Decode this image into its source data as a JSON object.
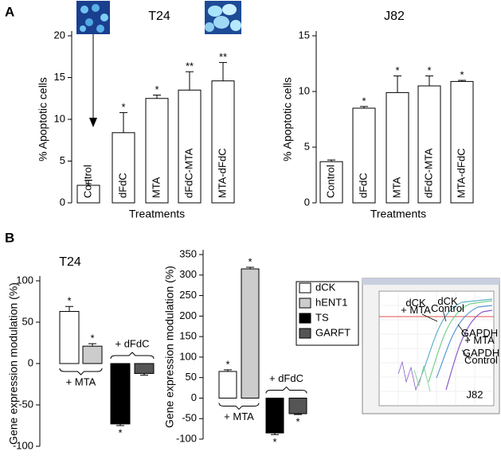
{
  "panel_labels": [
    "A",
    "B"
  ],
  "chart_data": [
    {
      "type": "bar",
      "title": "T24",
      "ylabel": "% Apoptotic cells",
      "xlabel": "Treatments",
      "categories": [
        "Control",
        "dFdC",
        "MTA",
        "dFdC-MTA",
        "MTA-dFdC"
      ],
      "values": [
        2.1,
        8.4,
        12.5,
        13.5,
        14.6
      ],
      "errors": [
        0.6,
        2.4,
        0.4,
        2.2,
        2.2
      ],
      "annotations": [
        null,
        "*",
        "*",
        "**",
        "**"
      ],
      "color": "#ffffff",
      "ylim": [
        0,
        20
      ],
      "yticks": [
        0,
        5,
        10,
        15,
        20
      ]
    },
    {
      "type": "bar",
      "title": "J82",
      "ylabel": "% Apoptotic cells",
      "xlabel": "Treatments",
      "categories": [
        "Control",
        "dFdC",
        "MTA",
        "dFdC-MTA",
        "MTA-dFdC"
      ],
      "values": [
        3.7,
        8.5,
        9.9,
        10.5,
        10.9
      ],
      "errors": [
        0.15,
        0.15,
        1.5,
        0.9,
        0.1
      ],
      "annotations": [
        null,
        "*",
        "*",
        "*",
        "*"
      ],
      "color": "#ffffff",
      "ylim": [
        0,
        15
      ],
      "yticks": [
        0,
        5,
        10,
        15
      ]
    },
    {
      "type": "grouped_bar",
      "title": "T24",
      "ylabel": "Gene expression modulation (%)",
      "groups": [
        "+ MTA",
        "+ dFdC"
      ],
      "series": [
        {
          "color": "#ffffff",
          "values": [
            63,
            null
          ],
          "errors": [
            6,
            null
          ],
          "annotations": [
            "*",
            null
          ]
        },
        {
          "color": "#cccccc",
          "values": [
            21,
            null
          ],
          "errors": [
            3,
            null
          ],
          "annotations": [
            "*",
            null
          ]
        },
        {
          "color": "#000000",
          "values": [
            null,
            -73
          ],
          "errors": [
            null,
            2
          ],
          "annotations": [
            null,
            "*"
          ]
        },
        {
          "color": "#555555",
          "values": [
            null,
            -12
          ],
          "errors": [
            null,
            2
          ],
          "annotations": [
            null,
            null
          ]
        }
      ],
      "ylim": [
        -100,
        100
      ],
      "yticks": [
        -100,
        -50,
        0,
        50,
        100
      ]
    },
    {
      "type": "grouped_bar",
      "ylabel": "Gene expression modulation (%)",
      "groups": [
        "+ MTA",
        "+ dFdC"
      ],
      "series": [
        {
          "name": "dCK",
          "color": "#ffffff",
          "values": [
            65,
            null
          ],
          "errors": [
            4,
            null
          ],
          "annotations": [
            "*",
            null
          ]
        },
        {
          "name": "hENT1",
          "color": "#cccccc",
          "values": [
            315,
            null
          ],
          "errors": [
            4,
            null
          ],
          "annotations": [
            "*",
            null
          ]
        },
        {
          "name": "TS",
          "color": "#000000",
          "values": [
            null,
            -85
          ],
          "errors": [
            null,
            4
          ],
          "annotations": [
            null,
            "*"
          ]
        },
        {
          "name": "GARFT",
          "color": "#555555",
          "values": [
            null,
            -38
          ],
          "errors": [
            null,
            2
          ],
          "annotations": [
            null,
            "*"
          ]
        }
      ],
      "ylim": [
        -100,
        350
      ],
      "yticks": [
        -100,
        -50,
        0,
        50,
        100,
        150,
        200,
        250,
        300,
        350
      ]
    }
  ],
  "inset": {
    "title": "J82",
    "labels": [
      "dCK\n+ MTA",
      "dCK\nControl",
      "GAPDH\n+ MTA",
      "GAPDH\nControl"
    ]
  }
}
